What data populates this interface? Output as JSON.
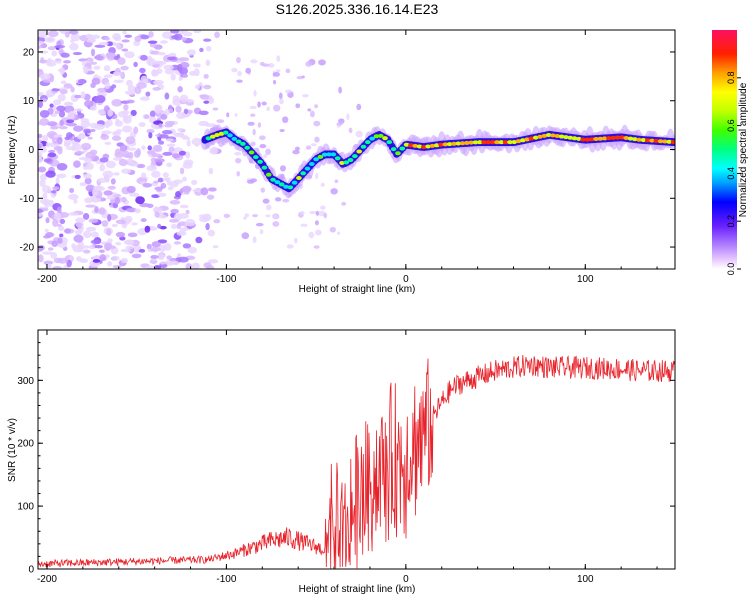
{
  "title": "S126.2025.336.16.14.E23",
  "colors": {
    "snr_line": "#e8222a",
    "axis": "#000000",
    "background": "#ffffff"
  },
  "chart_data": [
    {
      "type": "heatmap",
      "name": "spectrogram",
      "xlabel": "Height of straight line (km)",
      "ylabel": "Frequency (Hz)",
      "xlim": [
        -205,
        150
      ],
      "ylim": [
        -24.5,
        24.5
      ],
      "xticks": [
        -200,
        -100,
        0,
        100
      ],
      "yticks": [
        -20,
        -10,
        0,
        10,
        20
      ],
      "ridge": {
        "x": [
          -112,
          -105,
          -100,
          -95,
          -90,
          -85,
          -80,
          -75,
          -70,
          -65,
          -60,
          -55,
          -50,
          -45,
          -40,
          -35,
          -30,
          -25,
          -20,
          -15,
          -10,
          -5,
          0,
          10,
          20,
          40,
          60,
          80,
          100,
          120,
          130,
          150
        ],
        "y": [
          2,
          3,
          3.5,
          2,
          1,
          -1,
          -3,
          -6,
          -7,
          -8,
          -6,
          -4,
          -2,
          -1,
          -1,
          -3,
          -2,
          0,
          2,
          3,
          2,
          -1,
          1,
          0.5,
          1,
          1.5,
          1.5,
          3,
          2,
          2.5,
          2,
          1.5
        ]
      },
      "colorbar": {
        "label": "Normalized spectral amplitude",
        "range": [
          0,
          1
        ],
        "ticks": [
          0.0,
          0.2,
          0.4,
          0.6,
          0.8
        ]
      }
    },
    {
      "type": "line",
      "name": "snr",
      "xlabel": "Height of straight line (km)",
      "ylabel": "SNR (10 * v/v)",
      "xlim": [
        -205,
        150
      ],
      "ylim": [
        0,
        380
      ],
      "xticks": [
        -200,
        -100,
        0,
        100
      ],
      "yticks": [
        0,
        100,
        200,
        300
      ],
      "trend": {
        "x": [
          -205,
          -150,
          -110,
          -95,
          -85,
          -75,
          -65,
          -55,
          -45,
          -40,
          -35,
          -30,
          -25,
          -20,
          -15,
          -10,
          -5,
          0,
          5,
          10,
          15,
          20,
          25,
          30,
          40,
          50,
          60,
          70,
          80,
          100,
          120,
          130,
          150
        ],
        "y": [
          8,
          12,
          15,
          25,
          35,
          45,
          50,
          40,
          30,
          40,
          60,
          90,
          120,
          140,
          150,
          160,
          170,
          180,
          195,
          220,
          240,
          265,
          285,
          295,
          305,
          315,
          320,
          325,
          320,
          320,
          318,
          315,
          315
        ]
      }
    }
  ]
}
